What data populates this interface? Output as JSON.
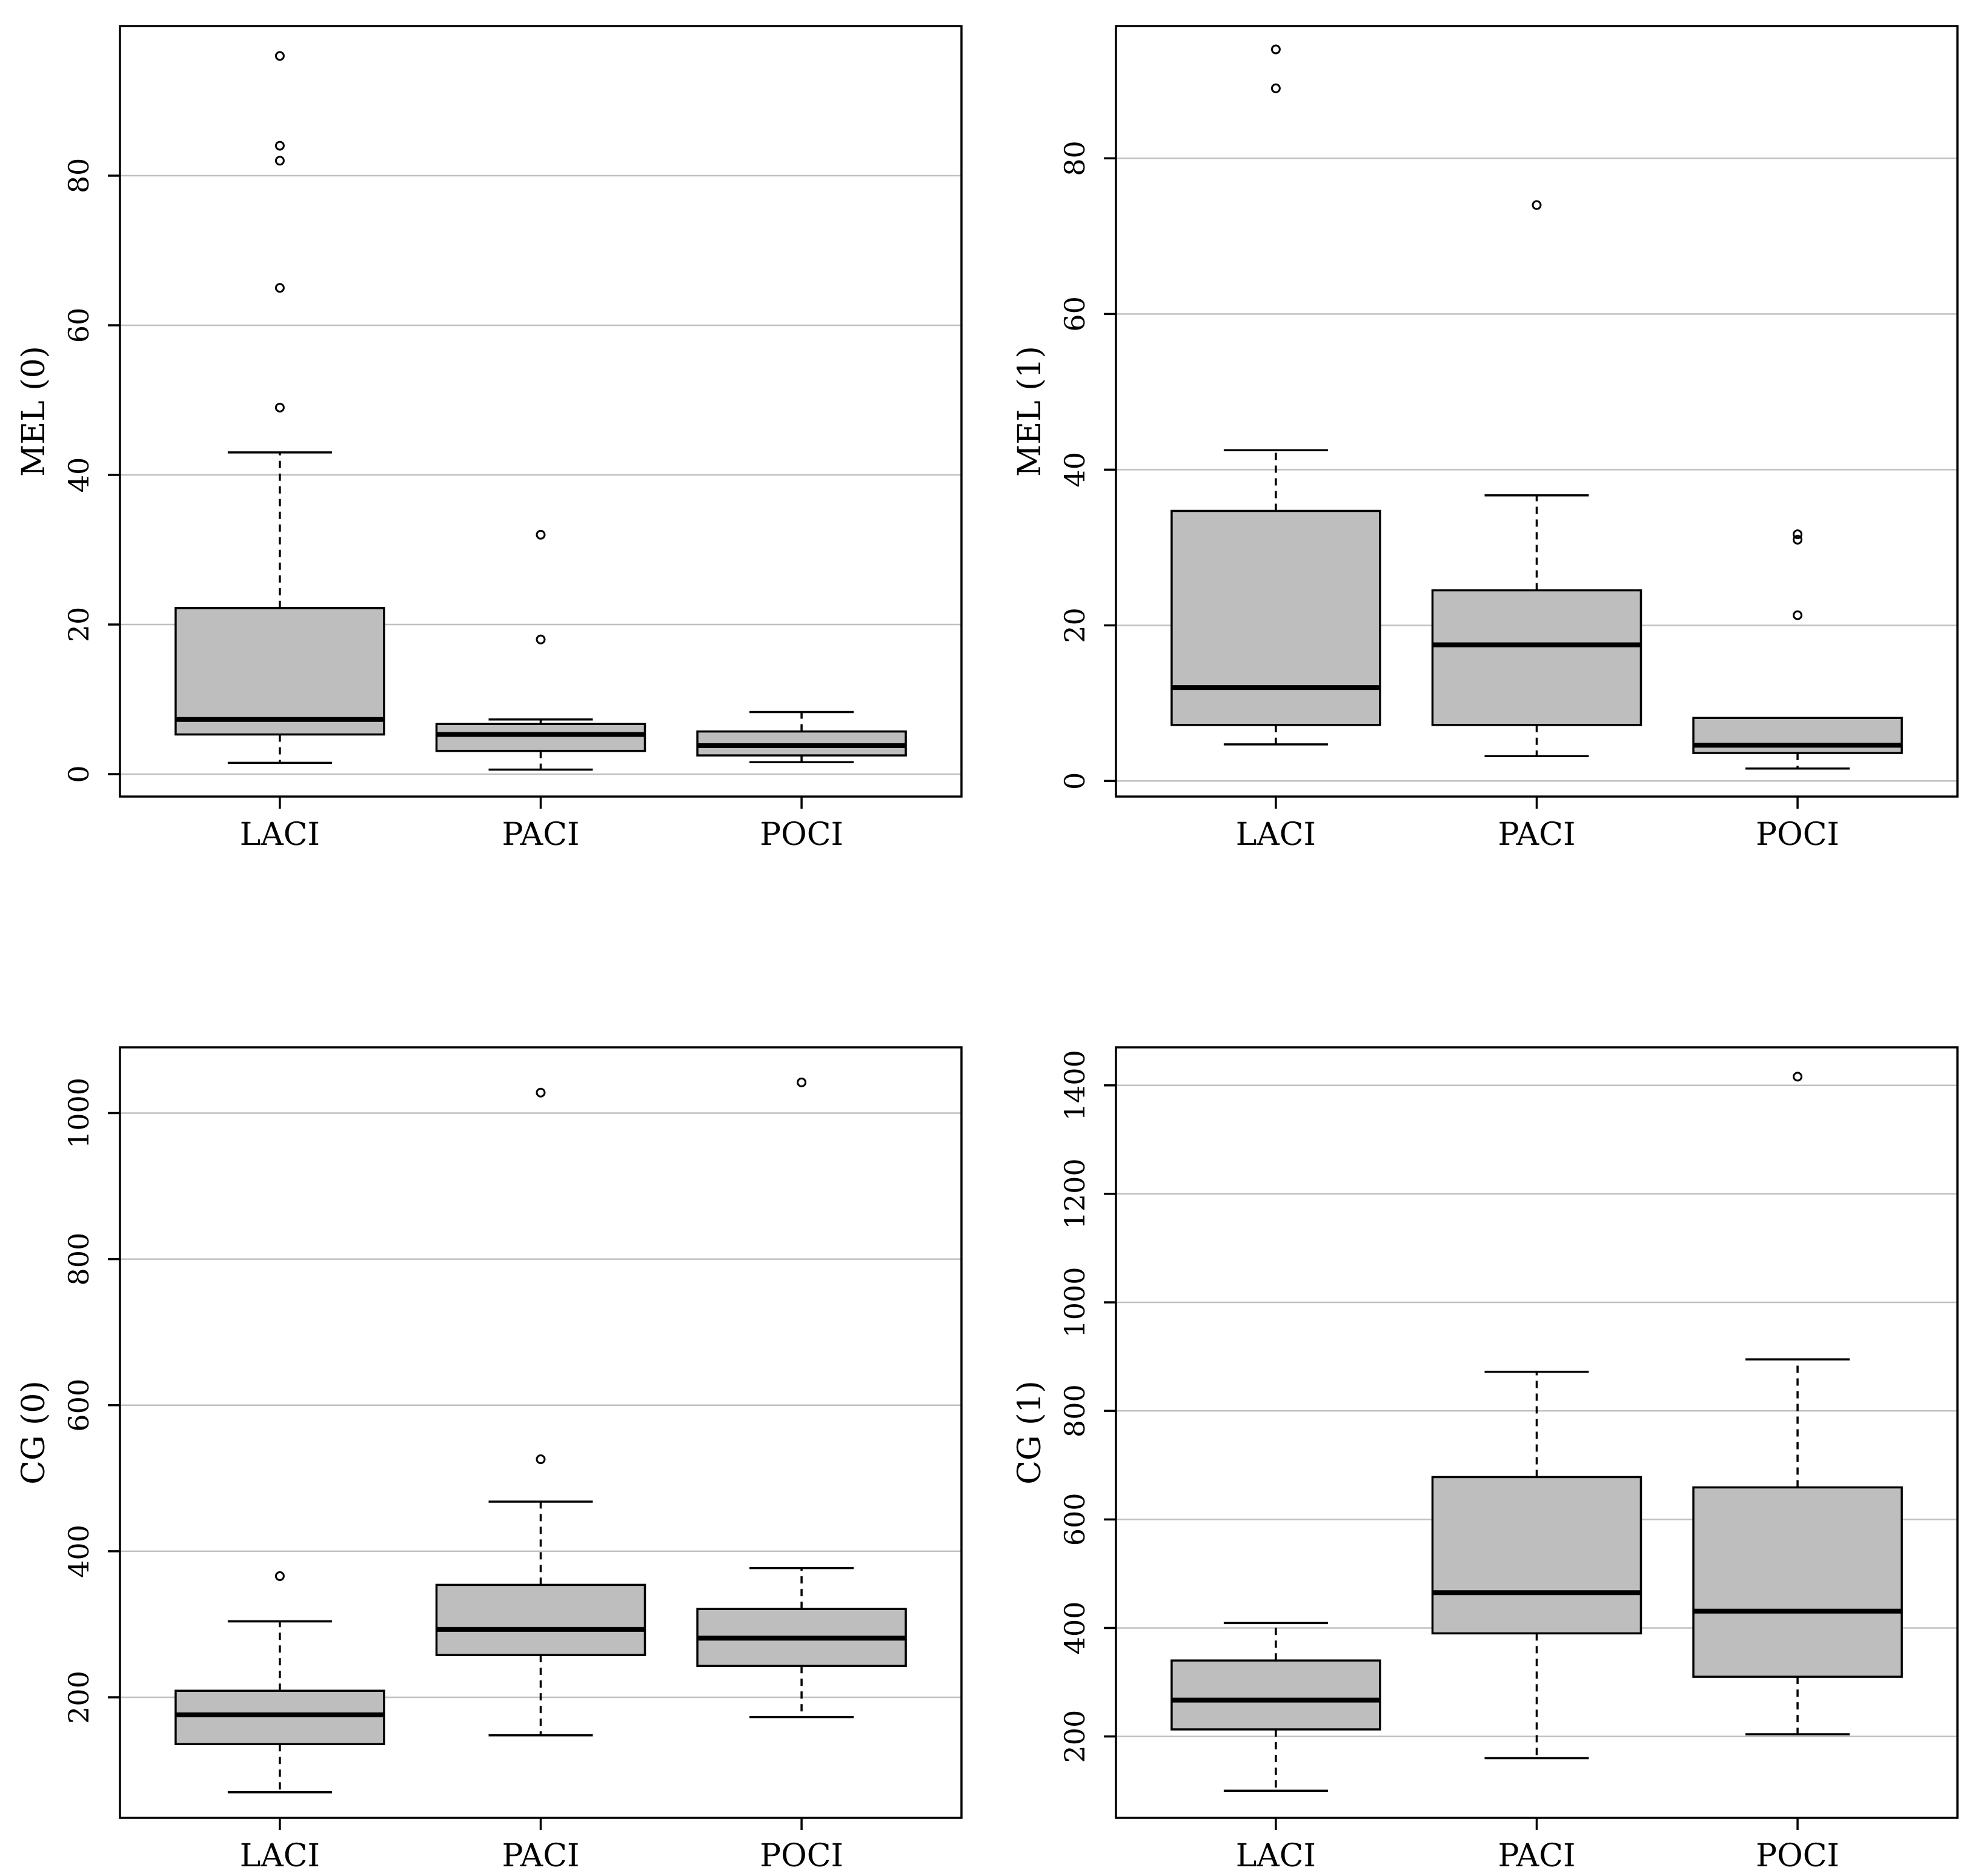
{
  "chart_data": [
    {
      "type": "boxplot",
      "ylabel": "MEL (0)",
      "categories": [
        "LACI",
        "PACI",
        "POCI"
      ],
      "ylim": [
        -3,
        100
      ],
      "yticks": [
        0,
        20,
        40,
        60,
        80
      ],
      "grid": true,
      "boxes": [
        {
          "category": "LACI",
          "whisker_low": 1.5,
          "q1": 5.3,
          "median": 7.3,
          "q3": 22.2,
          "whisker_high": 43,
          "outliers": [
            49,
            65,
            82,
            84,
            96
          ]
        },
        {
          "category": "PACI",
          "whisker_low": 0.6,
          "q1": 3.1,
          "median": 5.3,
          "q3": 6.7,
          "whisker_high": 7.3,
          "outliers": [
            18,
            32
          ]
        },
        {
          "category": "POCI",
          "whisker_low": 1.6,
          "q1": 2.5,
          "median": 3.8,
          "q3": 5.7,
          "whisker_high": 8.3,
          "outliers": []
        }
      ]
    },
    {
      "type": "boxplot",
      "ylabel": "MEL (1)",
      "categories": [
        "LACI",
        "PACI",
        "POCI"
      ],
      "ylim": [
        -2,
        97
      ],
      "yticks": [
        0,
        20,
        40,
        60,
        80
      ],
      "grid": true,
      "boxes": [
        {
          "category": "LACI",
          "whisker_low": 4.7,
          "q1": 7.2,
          "median": 12,
          "q3": 34.7,
          "whisker_high": 42.5,
          "outliers": [
            89,
            94
          ]
        },
        {
          "category": "PACI",
          "whisker_low": 3.2,
          "q1": 7.2,
          "median": 17.5,
          "q3": 24.5,
          "whisker_high": 36.7,
          "outliers": [
            74
          ]
        },
        {
          "category": "POCI",
          "whisker_low": 1.6,
          "q1": 3.6,
          "median": 4.6,
          "q3": 8.1,
          "whisker_high": 8.1,
          "outliers": [
            21.3,
            31,
            31.7
          ]
        }
      ]
    },
    {
      "type": "boxplot",
      "ylabel": "CG (0)",
      "categories": [
        "LACI",
        "PACI",
        "POCI"
      ],
      "ylim": [
        35,
        1090
      ],
      "yticks": [
        200,
        400,
        600,
        800,
        1000
      ],
      "grid": true,
      "boxes": [
        {
          "category": "LACI",
          "whisker_low": 70,
          "q1": 136,
          "median": 176,
          "q3": 209,
          "whisker_high": 304,
          "outliers": [
            366
          ]
        },
        {
          "category": "PACI",
          "whisker_low": 148,
          "q1": 258,
          "median": 293,
          "q3": 354,
          "whisker_high": 468,
          "outliers": [
            526,
            1028
          ]
        },
        {
          "category": "POCI",
          "whisker_low": 173,
          "q1": 243,
          "median": 281,
          "q3": 321,
          "whisker_high": 377,
          "outliers": [
            1042
          ]
        }
      ]
    },
    {
      "type": "boxplot",
      "ylabel": "CG (1)",
      "categories": [
        "LACI",
        "PACI",
        "POCI"
      ],
      "ylim": [
        50,
        1470
      ],
      "yticks": [
        200,
        400,
        600,
        800,
        1000,
        1200,
        1400
      ],
      "grid": true,
      "boxes": [
        {
          "category": "LACI",
          "whisker_low": 100,
          "q1": 213,
          "median": 267,
          "q3": 340,
          "whisker_high": 409,
          "outliers": []
        },
        {
          "category": "PACI",
          "whisker_low": 160,
          "q1": 390,
          "median": 465,
          "q3": 678,
          "whisker_high": 872,
          "outliers": []
        },
        {
          "category": "POCI",
          "whisker_low": 204,
          "q1": 310,
          "median": 431,
          "q3": 659,
          "whisker_high": 895,
          "outliers": [
            1416
          ]
        }
      ]
    }
  ]
}
